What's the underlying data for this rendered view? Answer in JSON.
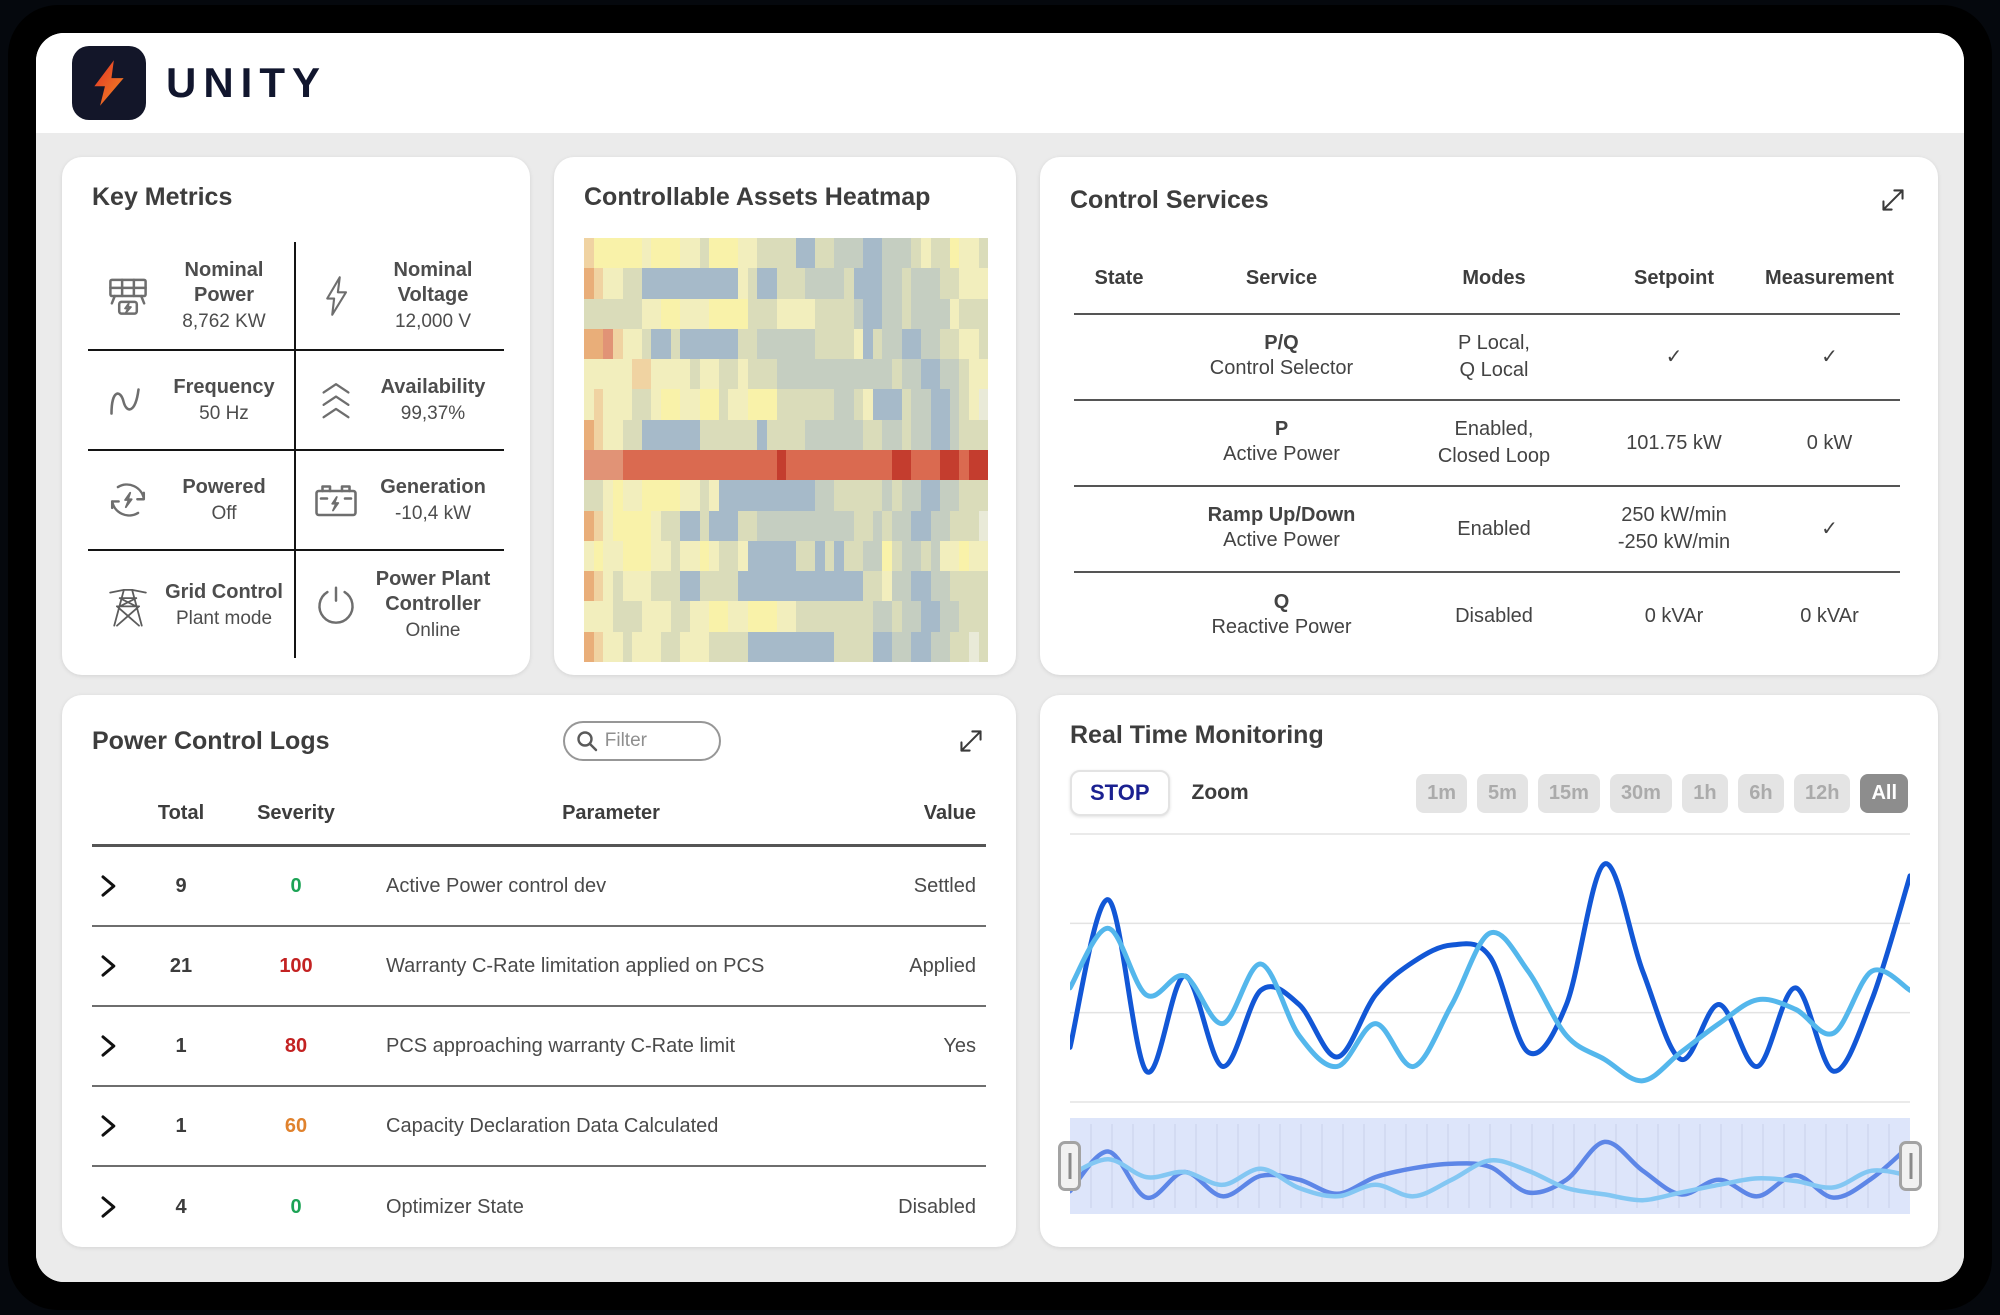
{
  "app": {
    "brand": "UNITY",
    "logo_colors": [
      "#e23127",
      "#f28a22"
    ],
    "logo_bg": "#131629"
  },
  "key_metrics": {
    "title": "Key Metrics",
    "items": [
      {
        "icon": "solar-panel-icon",
        "label": "Nominal Power",
        "value": "8,762 KW"
      },
      {
        "icon": "voltage-bolt-icon",
        "label": "Nominal Voltage",
        "value": "12,000 V"
      },
      {
        "icon": "frequency-wave-icon",
        "label": "Frequency",
        "value": "50 Hz"
      },
      {
        "icon": "availability-chevrons-icon",
        "label": "Availability",
        "value": "99,37%"
      },
      {
        "icon": "powered-cycle-icon",
        "label": "Powered",
        "value": "Off"
      },
      {
        "icon": "battery-icon",
        "label": "Generation",
        "value": "-10,4 kW"
      },
      {
        "icon": "grid-tower-icon",
        "label": "Grid Control",
        "value": "Plant mode"
      },
      {
        "icon": "power-button-icon",
        "label": "Power Plant Controller",
        "value": "Online"
      }
    ]
  },
  "control_services": {
    "title": "Control Services",
    "columns": [
      "State",
      "Service",
      "Modes",
      "Setpoint",
      "Measurement"
    ],
    "state_on_color": "#12c48c",
    "rows": [
      {
        "state": "on",
        "service_primary": "P/Q",
        "service_secondary": "Control Selector",
        "modes": [
          "P Local,",
          "Q Local"
        ],
        "setpoint": [
          "✓"
        ],
        "measurement": [
          "✓"
        ]
      },
      {
        "state": "on",
        "service_primary": "P",
        "service_secondary": "Active Power",
        "modes": [
          "Enabled,",
          "Closed Loop"
        ],
        "setpoint": [
          "101.75 kW"
        ],
        "measurement": [
          "0 kW"
        ]
      },
      {
        "state": "on",
        "service_primary": "Ramp Up/Down",
        "service_secondary": "Active Power",
        "modes": [
          "Enabled"
        ],
        "setpoint": [
          "250 kW/min",
          "-250 kW/min"
        ],
        "measurement": [
          "✓"
        ]
      },
      {
        "state": "on",
        "service_primary": "Q",
        "service_secondary": "Reactive Power",
        "modes": [
          "Disabled"
        ],
        "setpoint": [
          "0 kVAr"
        ],
        "measurement": [
          "0 kVAr"
        ]
      }
    ]
  },
  "logs": {
    "title": "Power Control Logs",
    "filter_placeholder": "Filter",
    "columns": [
      "Total",
      "Severity",
      "Parameter",
      "Value"
    ],
    "rows": [
      {
        "total": "9",
        "severity": "0",
        "severity_color": "#1ca355",
        "parameter": "Active Power control dev",
        "value": "Settled"
      },
      {
        "total": "21",
        "severity": "100",
        "severity_color": "#c32222",
        "parameter": "Warranty C-Rate limitation applied on PCS",
        "value": "Applied"
      },
      {
        "total": "1",
        "severity": "80",
        "severity_color": "#c32222",
        "parameter": "PCS approaching warranty C-Rate limit",
        "value": "Yes"
      },
      {
        "total": "1",
        "severity": "60",
        "severity_color": "#e0822d",
        "parameter": "Capacity Declaration Data Calculated",
        "value": ""
      },
      {
        "total": "4",
        "severity": "0",
        "severity_color": "#1ca355",
        "parameter": "Optimizer State",
        "value": "Disabled"
      }
    ]
  },
  "monitoring": {
    "title": "Real Time Monitoring",
    "stop_label": "STOP",
    "zoom_label": "Zoom",
    "ranges": [
      "1m",
      "5m",
      "15m",
      "30m",
      "1h",
      "6h",
      "12h",
      "All"
    ],
    "active_range": "All"
  },
  "chart_data": [
    {
      "type": "heatmap",
      "title": "Controllable Assets Heatmap",
      "palette": {
        "Y": "#f9f2a9",
        "y": "#f2eebd",
        "e": "#e9ead8",
        "g": "#dadcba",
        "G": "#c5cec1",
        "b": "#a6bac9",
        "o": "#f0d3a2",
        "O": "#e9ae79",
        "s": "#e19376",
        "r": "#da6a50",
        "R": "#c43d2e"
      },
      "rows": [
        "oYYYYYyYYYyygYYYyyggggbbggGGGbbGGGgyggYyyg",
        "OoyyggbbbbbbbbbbygbbgggGGGGgbbbGGgGGGggyyy",
        "ggggggyyYYyyyYYYYgggyyyyggggGbbGGgGGGGyggg",
        "OOsoyygbbgbbbbbbggGGGGGGggggybgGGbbGGggyyg",
        "yyyyyooyyyygyyggygggGGGGGGGGGGGGgGGbbGGgyy",
        "yoyyyggyYYyyYYgyyYYYggggggGGgybbbgGGbbGgye",
        "Ooyyggbbbbbbggggggbggg GGGGGGggGGgGGbbGggg",
        "ssssrrrrrrrrrrrrrrrrRrrrrrrrrrrrRRrrrRRrRR",
        "ggyYyyYYYYyygybbbbbbbbbbGGgggggGgGGbbGGggg",
        "OoyYYYYyggbbgbbbggGGGGGGGGGGggGgGGbbGGggge",
        "yYyyYYYyygyyYyggybbbbbggbgbggGGYgGGgGyyYyy",
        "OoygyyygggbbggggbbbbbbbbbbbbbggyGGbbGGgggg",
        "yyygggyyyggyyYYyyYYYyyggggggggGGgGGbbGGggg",
        "OoyygyyyggyyyggggbbbbbbbbbggggbbGGbbGGggeg"
      ]
    },
    {
      "type": "line",
      "title": "Real Time Monitoring",
      "xlabel": "",
      "ylabel": "",
      "ylim": [
        0,
        100
      ],
      "grid": "4 horizontal gridlines",
      "legend": "none",
      "series": [
        {
          "name": "dark-blue-series",
          "color": "#1257d6",
          "values": [
            20,
            82,
            10,
            50,
            12,
            44,
            38,
            16,
            42,
            56,
            63,
            58,
            18,
            38,
            97,
            52,
            15,
            38,
            12,
            45,
            10,
            40,
            92
          ]
        },
        {
          "name": "light-blue-series",
          "color": "#54b7ec",
          "values": [
            45,
            70,
            42,
            50,
            30,
            55,
            25,
            12,
            30,
            12,
            38,
            68,
            52,
            25,
            15,
            6,
            18,
            30,
            40,
            36,
            26,
            52,
            44
          ]
        }
      ],
      "navigator": {
        "present": true,
        "background": "#dde5fa",
        "gridline_color": "#c9d1ea",
        "line_colors": [
          "#5d86e7",
          "#83c7f3"
        ]
      }
    }
  ]
}
